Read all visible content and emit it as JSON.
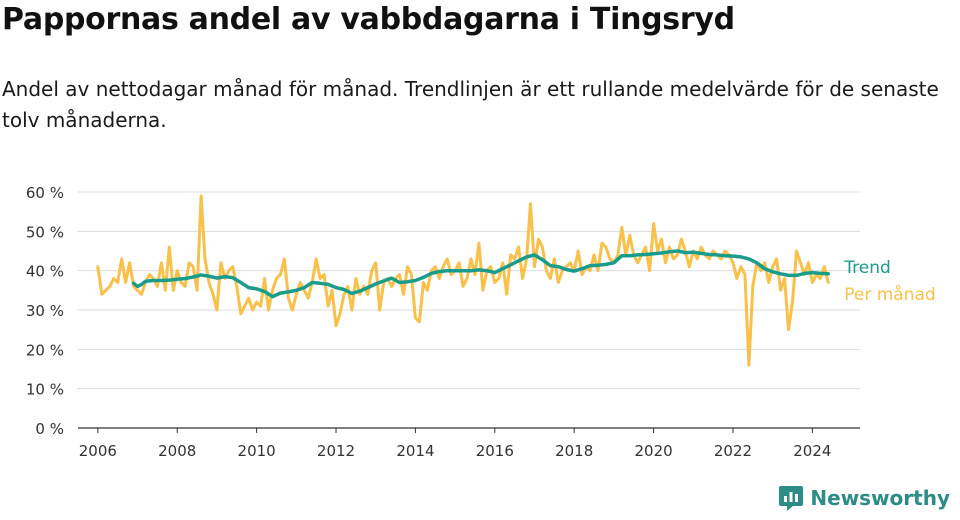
{
  "title": "Pappornas andel av vabbdagarna i Tingsryd",
  "subtitle": "Andel av nettodagar månad för månad. Trendlinjen är ett rullande medelvärde för de senaste tolv månaderna.",
  "brand": {
    "name": "Newsworthy",
    "icon": "newsworthy-logo-icon",
    "color": "#2b8c88"
  },
  "chart_data": {
    "type": "line",
    "ylim": [
      0,
      60
    ],
    "yticks": [
      0,
      10,
      20,
      30,
      40,
      50,
      60
    ],
    "ytick_labels": [
      "0 %",
      "10 %",
      "20 %",
      "30 %",
      "40 %",
      "50 %",
      "60 %"
    ],
    "xlim": [
      2005.5,
      2025.2
    ],
    "xticks": [
      2006,
      2008,
      2010,
      2012,
      2014,
      2016,
      2018,
      2020,
      2022,
      2024
    ],
    "xtick_labels": [
      "2006",
      "2008",
      "2010",
      "2012",
      "2014",
      "2016",
      "2018",
      "2020",
      "2022",
      "2024"
    ],
    "grid": true,
    "series": [
      {
        "name": "Per månad",
        "color": "#f9c04a",
        "x": [
          2006.0,
          2006.1,
          2006.2,
          2006.3,
          2006.4,
          2006.5,
          2006.6,
          2006.7,
          2006.8,
          2006.9,
          2007.0,
          2007.1,
          2007.2,
          2007.3,
          2007.4,
          2007.5,
          2007.6,
          2007.7,
          2007.8,
          2007.9,
          2008.0,
          2008.1,
          2008.2,
          2008.3,
          2008.4,
          2008.5,
          2008.6,
          2008.7,
          2008.8,
          2008.9,
          2009.0,
          2009.1,
          2009.2,
          2009.3,
          2009.4,
          2009.5,
          2009.6,
          2009.7,
          2009.8,
          2009.9,
          2010.0,
          2010.1,
          2010.2,
          2010.3,
          2010.4,
          2010.5,
          2010.6,
          2010.7,
          2010.8,
          2010.9,
          2011.0,
          2011.1,
          2011.2,
          2011.3,
          2011.4,
          2011.5,
          2011.6,
          2011.7,
          2011.8,
          2011.9,
          2012.0,
          2012.1,
          2012.2,
          2012.3,
          2012.4,
          2012.5,
          2012.6,
          2012.7,
          2012.8,
          2012.9,
          2013.0,
          2013.1,
          2013.2,
          2013.3,
          2013.4,
          2013.5,
          2013.6,
          2013.7,
          2013.8,
          2013.9,
          2014.0,
          2014.1,
          2014.2,
          2014.3,
          2014.4,
          2014.5,
          2014.6,
          2014.7,
          2014.8,
          2014.9,
          2015.0,
          2015.1,
          2015.2,
          2015.3,
          2015.4,
          2015.5,
          2015.6,
          2015.7,
          2015.8,
          2015.9,
          2016.0,
          2016.1,
          2016.2,
          2016.3,
          2016.4,
          2016.5,
          2016.6,
          2016.7,
          2016.8,
          2016.9,
          2017.0,
          2017.1,
          2017.2,
          2017.3,
          2017.4,
          2017.5,
          2017.6,
          2017.7,
          2017.8,
          2017.9,
          2018.0,
          2018.1,
          2018.2,
          2018.3,
          2018.4,
          2018.5,
          2018.6,
          2018.7,
          2018.8,
          2018.9,
          2019.0,
          2019.1,
          2019.2,
          2019.3,
          2019.4,
          2019.5,
          2019.6,
          2019.7,
          2019.8,
          2019.9,
          2020.0,
          2020.1,
          2020.2,
          2020.3,
          2020.4,
          2020.5,
          2020.6,
          2020.7,
          2020.8,
          2020.9,
          2021.0,
          2021.1,
          2021.2,
          2021.3,
          2021.4,
          2021.5,
          2021.6,
          2021.7,
          2021.8,
          2021.9,
          2022.0,
          2022.1,
          2022.2,
          2022.3,
          2022.4,
          2022.5,
          2022.6,
          2022.7,
          2022.8,
          2022.9,
          2023.0,
          2023.1,
          2023.2,
          2023.3,
          2023.4,
          2023.5,
          2023.6,
          2023.7,
          2023.8,
          2023.9,
          2024.0,
          2024.1,
          2024.2,
          2024.3,
          2024.4
        ],
        "y": [
          41,
          34,
          35,
          36,
          38,
          37,
          43,
          37,
          42,
          36,
          35,
          34,
          37,
          39,
          38,
          36,
          42,
          35,
          46,
          35,
          40,
          37,
          36,
          42,
          41,
          35,
          59,
          43,
          37,
          34,
          30,
          42,
          38,
          40,
          41,
          36,
          29,
          31,
          33,
          30,
          32,
          31,
          38,
          30,
          35,
          38,
          39,
          43,
          33,
          30,
          34,
          37,
          35,
          33,
          37,
          43,
          38,
          39,
          31,
          35,
          26,
          29,
          34,
          36,
          30,
          38,
          34,
          36,
          34,
          40,
          42,
          30,
          37,
          38,
          36,
          38,
          39,
          34,
          41,
          39,
          28,
          27,
          37,
          35,
          40,
          41,
          38,
          41,
          43,
          39,
          40,
          42,
          36,
          38,
          43,
          39,
          47,
          35,
          40,
          41,
          37,
          38,
          42,
          34,
          44,
          43,
          46,
          38,
          43,
          57,
          41,
          48,
          46,
          40,
          38,
          43,
          37,
          40,
          41,
          42,
          40,
          45,
          39,
          41,
          40,
          44,
          40,
          47,
          46,
          43,
          42,
          44,
          51,
          44,
          49,
          44,
          42,
          44,
          46,
          40,
          52,
          45,
          48,
          42,
          46,
          43,
          44,
          48,
          45,
          41,
          45,
          43,
          46,
          44,
          43,
          45,
          44,
          43,
          45,
          44,
          42,
          38,
          41,
          39,
          16,
          36,
          42,
          40,
          42,
          37,
          41,
          43,
          35,
          38,
          25,
          32,
          45,
          42,
          39,
          42,
          37,
          39,
          38,
          41,
          37
        ],
        "label": "Per månad"
      },
      {
        "name": "Trend",
        "color": "#1a9c8c",
        "x": [
          2006.9,
          2007.0,
          2007.1,
          2007.2,
          2007.4,
          2007.6,
          2007.8,
          2008.0,
          2008.2,
          2008.4,
          2008.6,
          2008.8,
          2009.0,
          2009.2,
          2009.4,
          2009.6,
          2009.8,
          2010.0,
          2010.2,
          2010.4,
          2010.6,
          2010.8,
          2011.0,
          2011.2,
          2011.4,
          2011.6,
          2011.8,
          2012.0,
          2012.2,
          2012.4,
          2012.6,
          2012.8,
          2013.0,
          2013.2,
          2013.4,
          2013.6,
          2013.8,
          2014.0,
          2014.2,
          2014.4,
          2014.6,
          2014.8,
          2015.0,
          2015.2,
          2015.4,
          2015.6,
          2015.8,
          2016.0,
          2016.2,
          2016.4,
          2016.6,
          2016.8,
          2017.0,
          2017.2,
          2017.4,
          2017.6,
          2017.8,
          2018.0,
          2018.2,
          2018.4,
          2018.6,
          2018.8,
          2019.0,
          2019.2,
          2019.4,
          2019.6,
          2019.8,
          2020.0,
          2020.2,
          2020.4,
          2020.6,
          2020.8,
          2021.0,
          2021.2,
          2021.4,
          2021.6,
          2021.8,
          2022.0,
          2022.2,
          2022.4,
          2022.6,
          2022.8,
          2023.0,
          2023.2,
          2023.4,
          2023.6,
          2023.8,
          2024.0,
          2024.2,
          2024.4
        ],
        "y": [
          36.8,
          36,
          36.5,
          37.3,
          37.5,
          37.5,
          37.6,
          37.8,
          38,
          38.4,
          38.9,
          38.6,
          38.1,
          38.5,
          38.2,
          37,
          35.7,
          35.4,
          34.7,
          33.4,
          34.3,
          34.6,
          35,
          35.7,
          37,
          36.8,
          36.5,
          35.7,
          35.2,
          34.2,
          34.8,
          35.7,
          36.6,
          37.4,
          38.1,
          37,
          37.2,
          37.5,
          38.3,
          39.3,
          39.8,
          40,
          40,
          40,
          40,
          40.2,
          40,
          39.5,
          40.5,
          41.5,
          42.5,
          43.5,
          44,
          42.8,
          41.3,
          41,
          40.3,
          39.9,
          40.5,
          41.3,
          41.4,
          41.6,
          42,
          43.8,
          43.8,
          44,
          44.1,
          44.3,
          44.5,
          44.8,
          45,
          44.6,
          44.7,
          44.4,
          44.1,
          44,
          43.8,
          43.7,
          43.5,
          43,
          42,
          40.5,
          39.7,
          39.2,
          38.8,
          38.8,
          39.3,
          39.5,
          39.3,
          39.2
        ],
        "label": "Trend"
      }
    ]
  }
}
